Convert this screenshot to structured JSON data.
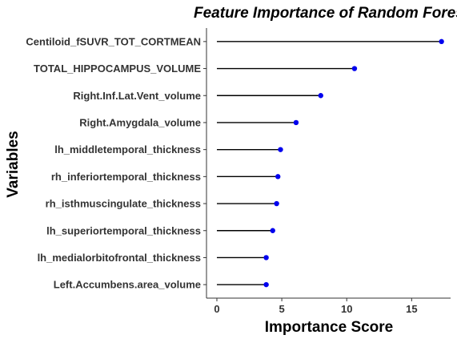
{
  "chart_data": {
    "type": "lollipop",
    "title": "Feature Importance of Random Forest",
    "xlabel": "Importance Score",
    "ylabel": "Variables",
    "xlim": [
      -0.8,
      18.0
    ],
    "xticks": [
      0,
      5,
      10,
      15
    ],
    "grid": false,
    "legend": "none",
    "colors": {
      "stem": "#000000",
      "point": "#0000ee",
      "axis": "#333333"
    },
    "categories": [
      "Centiloid_fSUVR_TOT_CORTMEAN",
      "TOTAL_HIPPOCAMPUS_VOLUME",
      "Right.Inf.Lat.Vent_volume",
      "Right.Amygdala_volume",
      "lh_middletemporal_thickness",
      "rh_inferiortemporal_thickness",
      "rh_isthmuscingulate_thickness",
      "lh_superiortemporal_thickness",
      "lh_medialorbitofrontal_thickness",
      "Left.Accumbens.area_volume"
    ],
    "values": [
      17.3,
      10.6,
      8.0,
      6.1,
      4.9,
      4.7,
      4.6,
      4.3,
      3.8,
      3.8
    ]
  }
}
